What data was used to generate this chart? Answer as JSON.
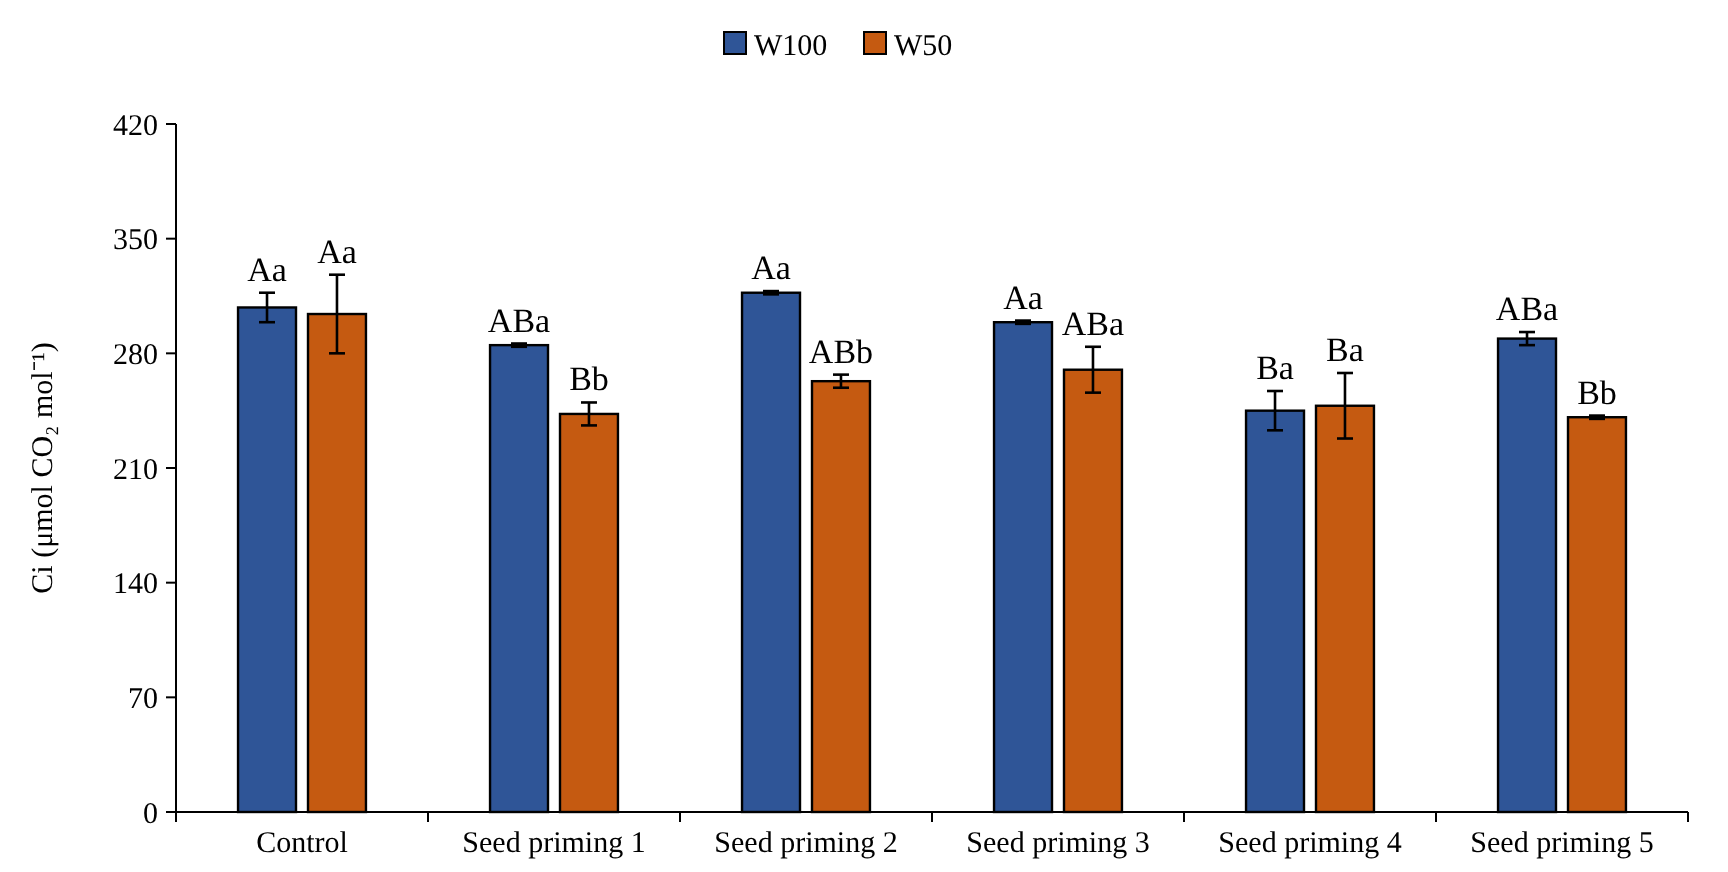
{
  "chart_data": {
    "type": "bar",
    "ylabel": "Ci (μmol CO₂ mol⁻¹)",
    "categories": [
      "Control",
      "Seed priming 1",
      "Seed priming 2",
      "Seed priming 3",
      "Seed priming 4",
      "Seed priming 5"
    ],
    "series": [
      {
        "name": "W100",
        "color": "#2f5597",
        "values": [
          308,
          285,
          317,
          299,
          245,
          289
        ],
        "errors": [
          9,
          1,
          1,
          1,
          12,
          4
        ]
      },
      {
        "name": "W50",
        "color": "#c55a11",
        "values": [
          304,
          243,
          263,
          270,
          248,
          241
        ],
        "errors": [
          24,
          7,
          4,
          14,
          20,
          1
        ]
      }
    ],
    "ylim": [
      0,
      420
    ],
    "yticks": [
      0,
      70,
      140,
      210,
      280,
      350,
      420
    ],
    "grid": false,
    "legend": "top",
    "annotations": [
      {
        "text": "Aa",
        "x": "Control",
        "y": 308
      },
      {
        "text": "Aa",
        "x": "Control",
        "y": 304
      },
      {
        "text": "ABa",
        "x": "Seed priming 1",
        "y": 285
      },
      {
        "text": "Bb",
        "x": "Seed priming 1",
        "y": 243
      },
      {
        "text": "Aa",
        "x": "Seed priming 2",
        "y": 317
      },
      {
        "text": "ABb",
        "x": "Seed priming 2",
        "y": 263
      },
      {
        "text": "Aa",
        "x": "Seed priming 3",
        "y": 299
      },
      {
        "text": "ABa",
        "x": "Seed priming 3",
        "y": 270
      },
      {
        "text": "Ba",
        "x": "Seed priming 4",
        "y": 245
      },
      {
        "text": "Ba",
        "x": "Seed priming 4",
        "y": 248
      },
      {
        "text": "ABa",
        "x": "Seed priming 5",
        "y": 289
      },
      {
        "text": "Bb",
        "x": "Seed priming 5",
        "y": 241
      }
    ]
  }
}
